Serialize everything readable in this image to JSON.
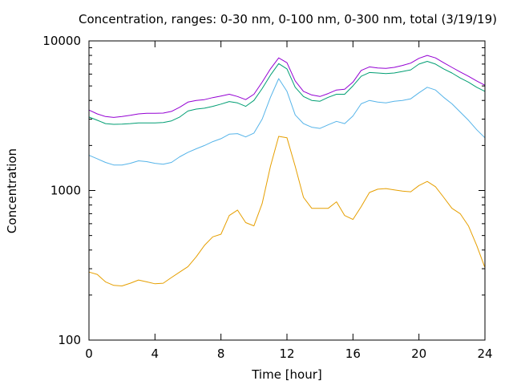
{
  "chart_data": {
    "type": "line",
    "title": "Concentration, ranges: 0-30 nm, 0-100 nm, 0-300 nm, total (3/19/19)",
    "xlabel": "Time [hour]",
    "ylabel": "Concentration",
    "xlim": [
      0,
      24
    ],
    "ylim": [
      100,
      10000
    ],
    "yscale": "log",
    "grid": false,
    "legend": "none",
    "x_ticks": [
      0,
      4,
      8,
      12,
      16,
      20,
      24
    ],
    "x_tick_labels": [
      "0",
      "4",
      "8",
      "12",
      "16",
      "20",
      "24"
    ],
    "y_ticks": [
      100,
      1000,
      10000
    ],
    "y_tick_labels": [
      "100",
      "1000",
      "10000"
    ],
    "x": [
      0,
      0.5,
      1,
      1.5,
      2,
      2.5,
      3,
      3.5,
      4,
      4.5,
      5,
      5.5,
      6,
      6.5,
      7,
      7.5,
      8,
      8.5,
      9,
      9.5,
      10,
      10.5,
      11,
      11.5,
      12,
      12.5,
      13,
      13.5,
      14,
      14.5,
      15,
      15.5,
      16,
      16.5,
      17,
      17.5,
      18,
      18.5,
      19,
      19.5,
      20,
      20.5,
      21,
      21.5,
      22,
      22.5,
      23,
      23.5,
      24
    ],
    "series": [
      {
        "color": "#e69f00",
        "values": [
          285,
          275,
          245,
          232,
          230,
          240,
          252,
          245,
          238,
          240,
          262,
          285,
          310,
          360,
          430,
          490,
          510,
          680,
          740,
          610,
          580,
          820,
          1450,
          2300,
          2250,
          1450,
          900,
          760,
          760,
          760,
          840,
          680,
          640,
          780,
          970,
          1020,
          1030,
          1010,
          990,
          980,
          1080,
          1150,
          1060,
          900,
          760,
          700,
          580,
          430,
          305
        ]
      },
      {
        "color": "#56b4e9",
        "values": [
          1720,
          1630,
          1540,
          1480,
          1480,
          1520,
          1580,
          1560,
          1520,
          1500,
          1540,
          1680,
          1800,
          1900,
          2000,
          2120,
          2220,
          2380,
          2400,
          2280,
          2420,
          3000,
          4200,
          5600,
          4600,
          3200,
          2800,
          2650,
          2600,
          2750,
          2900,
          2800,
          3150,
          3800,
          4000,
          3900,
          3850,
          3950,
          4000,
          4100,
          4500,
          4900,
          4700,
          4200,
          3800,
          3350,
          2950,
          2550,
          2250
        ]
      },
      {
        "color": "#009e73",
        "values": [
          3100,
          2950,
          2800,
          2770,
          2780,
          2800,
          2830,
          2830,
          2830,
          2850,
          2920,
          3100,
          3400,
          3500,
          3550,
          3650,
          3780,
          3930,
          3850,
          3650,
          4000,
          4800,
          5900,
          7050,
          6500,
          4900,
          4250,
          4000,
          3950,
          4200,
          4400,
          4400,
          5000,
          5800,
          6150,
          6100,
          6050,
          6100,
          6250,
          6400,
          7000,
          7300,
          7000,
          6500,
          6100,
          5650,
          5300,
          4900,
          4600
        ]
      },
      {
        "color": "#9400d3",
        "values": [
          3450,
          3250,
          3120,
          3080,
          3120,
          3180,
          3250,
          3280,
          3280,
          3290,
          3380,
          3600,
          3900,
          4000,
          4050,
          4180,
          4280,
          4400,
          4250,
          4050,
          4400,
          5300,
          6500,
          7700,
          7150,
          5400,
          4600,
          4350,
          4250,
          4450,
          4700,
          4750,
          5300,
          6350,
          6700,
          6600,
          6550,
          6650,
          6850,
          7100,
          7650,
          8000,
          7700,
          7150,
          6650,
          6200,
          5800,
          5400,
          5050
        ]
      }
    ]
  }
}
